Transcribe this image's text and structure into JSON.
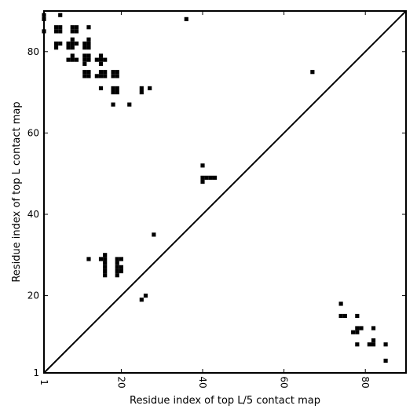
{
  "chart_data": {
    "type": "scatter",
    "title": "",
    "xlabel": "Residue index of top L/5 contact map",
    "ylabel": "Residue index of top L contact map",
    "xlim": [
      1,
      90
    ],
    "ylim": [
      1,
      90
    ],
    "x_ticks": [
      1,
      20,
      40,
      60,
      80
    ],
    "y_ticks": [
      1,
      20,
      40,
      60,
      80
    ],
    "x_tick_labels": [
      "1",
      "20",
      "40",
      "60",
      "80"
    ],
    "y_tick_labels": [
      "1",
      "20",
      "40",
      "60",
      "80"
    ],
    "grid": false,
    "diagonal_line": true,
    "marker": "square",
    "color": "#000000",
    "series": [
      {
        "points": [
          [
            1,
            89
          ],
          [
            1,
            88
          ],
          [
            1,
            85
          ],
          [
            5,
            89
          ],
          [
            36,
            88
          ],
          [
            4,
            86
          ],
          [
            4,
            85
          ],
          [
            5,
            86
          ],
          [
            5,
            85
          ],
          [
            8,
            86
          ],
          [
            8,
            85
          ],
          [
            9,
            86
          ],
          [
            9,
            85
          ],
          [
            12,
            86
          ],
          [
            4,
            82
          ],
          [
            5,
            82
          ],
          [
            4,
            81
          ],
          [
            8,
            83
          ],
          [
            7,
            82
          ],
          [
            8,
            82
          ],
          [
            9,
            82
          ],
          [
            7,
            81
          ],
          [
            8,
            81
          ],
          [
            11,
            82
          ],
          [
            12,
            82
          ],
          [
            11,
            81
          ],
          [
            12,
            81
          ],
          [
            12,
            83
          ],
          [
            7,
            78
          ],
          [
            8,
            78
          ],
          [
            9,
            78
          ],
          [
            8,
            79
          ],
          [
            11,
            79
          ],
          [
            12,
            79
          ],
          [
            11,
            78
          ],
          [
            12,
            78
          ],
          [
            11,
            77
          ],
          [
            14,
            78
          ],
          [
            15,
            78
          ],
          [
            16,
            78
          ],
          [
            15,
            79
          ],
          [
            15,
            77
          ],
          [
            11,
            75
          ],
          [
            12,
            75
          ],
          [
            11,
            74
          ],
          [
            12,
            74
          ],
          [
            14,
            74
          ],
          [
            15,
            75
          ],
          [
            16,
            75
          ],
          [
            15,
            74
          ],
          [
            16,
            74
          ],
          [
            18,
            75
          ],
          [
            19,
            75
          ],
          [
            18,
            74
          ],
          [
            19,
            74
          ],
          [
            15,
            71
          ],
          [
            18,
            71
          ],
          [
            19,
            71
          ],
          [
            18,
            70
          ],
          [
            19,
            70
          ],
          [
            25,
            71
          ],
          [
            25,
            70
          ],
          [
            27,
            71
          ],
          [
            18,
            67
          ],
          [
            22,
            67
          ],
          [
            67,
            75
          ],
          [
            40,
            52
          ],
          [
            40,
            49
          ],
          [
            41,
            49
          ],
          [
            42,
            49
          ],
          [
            43,
            49
          ],
          [
            40,
            48
          ],
          [
            28,
            35
          ],
          [
            12,
            29
          ],
          [
            15,
            29
          ],
          [
            16,
            29
          ],
          [
            16,
            30
          ],
          [
            16,
            28
          ],
          [
            16,
            27
          ],
          [
            16,
            26
          ],
          [
            16,
            25
          ],
          [
            19,
            29
          ],
          [
            20,
            29
          ],
          [
            19,
            28
          ],
          [
            19,
            27
          ],
          [
            20,
            27
          ],
          [
            19,
            26
          ],
          [
            20,
            26
          ],
          [
            19,
            25
          ],
          [
            25,
            19
          ],
          [
            26,
            20
          ],
          [
            74,
            18
          ],
          [
            74,
            15
          ],
          [
            75,
            15
          ],
          [
            78,
            15
          ],
          [
            78,
            12
          ],
          [
            79,
            12
          ],
          [
            82,
            12
          ],
          [
            77,
            11
          ],
          [
            78,
            11
          ],
          [
            82,
            9
          ],
          [
            78,
            8
          ],
          [
            81,
            8
          ],
          [
            82,
            8
          ],
          [
            85,
            8
          ],
          [
            85,
            4
          ]
        ]
      }
    ]
  }
}
